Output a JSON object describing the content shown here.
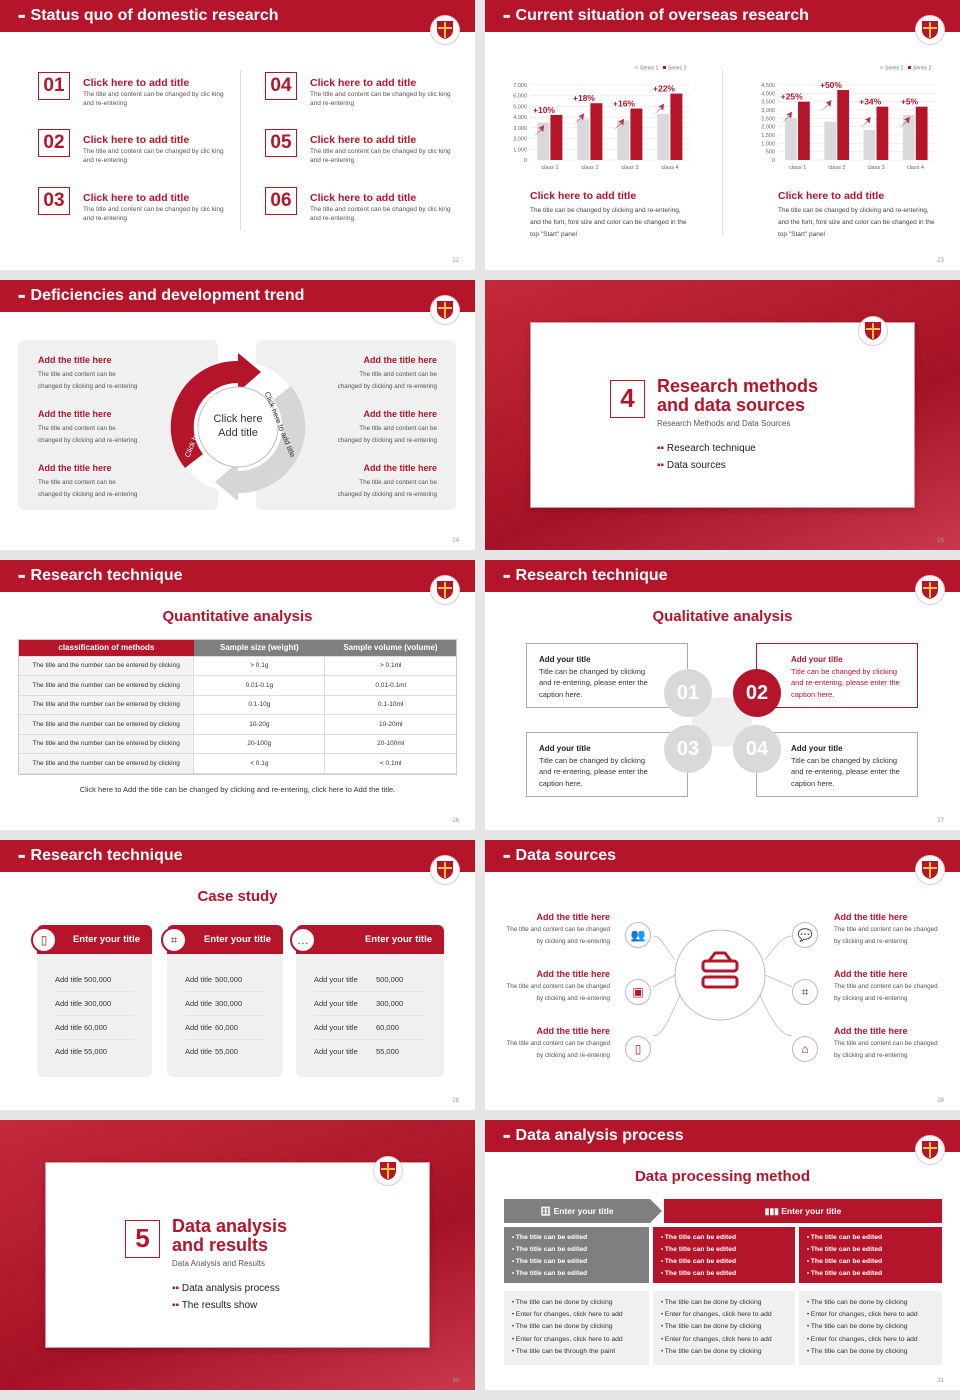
{
  "colors": {
    "primary": "#b5152b",
    "gray": "#7f7f7f",
    "light": "#f0f0f0"
  },
  "s22": {
    "title": "Status quo of domestic research",
    "page": "22",
    "items": [
      {
        "num": "01",
        "title": "Click here to add title",
        "text": "The title and content can be changed by clic king and re-entering"
      },
      {
        "num": "02",
        "title": "Click here to add title",
        "text": "The title and content can be changed by clic king and re-entering"
      },
      {
        "num": "03",
        "title": "Click here to add title",
        "text": "The title and content can be changed by clic king and re-entering"
      },
      {
        "num": "04",
        "title": "Click here to add title",
        "text": "The title and content can be changed by clic king and re-entering"
      },
      {
        "num": "05",
        "title": "Click here to add title",
        "text": "The title and content can be changed by clic king and re-entering"
      },
      {
        "num": "06",
        "title": "Click here to add title",
        "text": "The title and content can be changed by clic king and re-entering"
      }
    ]
  },
  "s23": {
    "title": "Current situation of overseas research",
    "page": "23",
    "captions": [
      {
        "title": "Click here to add title",
        "text": "The title can be changed by clicking and re-entering, and the font, font size and color can be changed in the top \"Start\" panel"
      },
      {
        "title": "Click here to add title",
        "text": "The title can be changed by clicking and re-entering, and the font, font size and color can be changed in the top \"Start\" panel"
      }
    ]
  },
  "chart_data": [
    {
      "type": "bar",
      "categories": [
        "class 1",
        "class 2",
        "class 3",
        "class 4"
      ],
      "series": [
        {
          "name": "Series 1",
          "values": [
            3500,
            3800,
            3700,
            4300
          ],
          "color": "#d9d9d9"
        },
        {
          "name": "Series 2",
          "values": [
            4200,
            5300,
            4800,
            6200
          ],
          "color": "#b5152b"
        }
      ],
      "annotations": [
        "+10%",
        "+18%",
        "+16%",
        "+22%"
      ],
      "yticks": [
        "0",
        "1,000",
        "2,000",
        "3,000",
        "4,000",
        "5,000",
        "6,000",
        "7,000"
      ],
      "ylim": [
        0,
        7000
      ],
      "legend": "top-right",
      "grid": true
    },
    {
      "type": "bar",
      "categories": [
        "class 1",
        "class 2",
        "class 3",
        "class 4"
      ],
      "series": [
        {
          "name": "Series 1",
          "values": [
            2500,
            2300,
            1800,
            2700
          ],
          "color": "#d9d9d9"
        },
        {
          "name": "Series 2",
          "values": [
            3500,
            4200,
            3200,
            3200
          ],
          "color": "#b5152b"
        }
      ],
      "annotations": [
        "+25%",
        "+50%",
        "+34%",
        "+5%"
      ],
      "yticks": [
        "0",
        "500",
        "1,000",
        "1,500",
        "2,000",
        "2,500",
        "3,000",
        "3,500",
        "4,000",
        "4,500"
      ],
      "ylim": [
        0,
        4500
      ],
      "legend": "top-right",
      "grid": true
    }
  ],
  "s24": {
    "title": "Deficiencies and development trend",
    "page": "24",
    "center": [
      "Click here",
      "Add title"
    ],
    "arc_left": "Click here to add title",
    "arc_right": "Click here to add title",
    "left": [
      {
        "title": "Add the title here",
        "text": "The title and content can be changed by clicking and re-entering"
      },
      {
        "title": "Add the title here",
        "text": "The title and content can be changed by clicking and re-entering"
      },
      {
        "title": "Add the title here",
        "text": "The title and content can be changed by clicking and re-entering"
      }
    ],
    "right": [
      {
        "title": "Add the title here",
        "text": "The title and content can be changed by clicking and re-entering"
      },
      {
        "title": "Add the title here",
        "text": "The title and content can be changed by clicking and re-entering"
      },
      {
        "title": "Add the title here",
        "text": "The title and content can be changed by clicking and re-entering"
      }
    ]
  },
  "s25": {
    "num": "4",
    "title1": "Research methods",
    "title2": "and data sources",
    "subtitle": "Research Methods and Data Sources",
    "bullets": [
      "Research technique",
      "Data sources"
    ],
    "page": "25"
  },
  "s26": {
    "title": "Research technique",
    "subtitle": "Quantitative analysis",
    "page": "26",
    "headers": [
      "classification of methods",
      "Sample size (weight)",
      "Sample volume (volume)"
    ],
    "rows": [
      [
        "The title and the number can be entered by clicking",
        "> 0.1g",
        "> 0.1ml"
      ],
      [
        "The title and the number can be entered by clicking",
        "0.01-0.1g",
        "0.01-0.1ml"
      ],
      [
        "The title and the number can be entered by clicking",
        "0.1-10g",
        "0.1-10ml"
      ],
      [
        "The title and the number can be entered by clicking",
        "10-20g",
        "10-20ml"
      ],
      [
        "The title and the number can be entered by clicking",
        "20-100g",
        "20-100ml"
      ],
      [
        "The title and the number can be entered by clicking",
        "< 0.1g",
        "< 0.1ml"
      ]
    ],
    "footer": "Click here to Add the title can be changed by clicking and re-entering, click here to Add the title."
  },
  "s27": {
    "title": "Research technique",
    "subtitle": "Qualitative analysis",
    "page": "27",
    "boxes": [
      {
        "num": "01",
        "title": "Add your title",
        "text": "Title can be changed by clicking and re-entering, please enter the caption here."
      },
      {
        "num": "02",
        "title": "Add your title",
        "text": "Title can be changed by clicking and re-entering, please enter the caption here."
      },
      {
        "num": "03",
        "title": "Add your title",
        "text": "Title can be changed by clicking and re-entering, please enter the caption here."
      },
      {
        "num": "04",
        "title": "Add your title",
        "text": "Title can be changed by clicking and re-entering, please enter the caption here."
      }
    ]
  },
  "s28": {
    "title": "Research technique",
    "subtitle": "Case study",
    "page": "28",
    "cards": [
      {
        "icon": "phone-user-icon",
        "title": "Enter your title",
        "rows": [
          [
            "Add title",
            "500,000"
          ],
          [
            "Add title",
            "300,000"
          ],
          [
            "Add title",
            "60,000"
          ],
          [
            "Add title",
            "55,000"
          ]
        ]
      },
      {
        "icon": "qr-scan-icon",
        "title": "Enter your title",
        "rows": [
          [
            "Add title",
            "500,000"
          ],
          [
            "Add title",
            "300,000"
          ],
          [
            "Add title",
            "60,000"
          ],
          [
            "Add title",
            "55,000"
          ]
        ]
      },
      {
        "icon": "chat-icon",
        "title": "Enter your title",
        "rows": [
          [
            "Add your title",
            "500,000"
          ],
          [
            "Add your title",
            "300,000"
          ],
          [
            "Add your title",
            "60,000"
          ],
          [
            "Add your title",
            "55,000"
          ]
        ]
      }
    ]
  },
  "s29": {
    "title": "Data sources",
    "page": "29",
    "left": [
      {
        "icon": "people-icon",
        "title": "Add the title here",
        "text": "The title and content can be changed by clicking and re-entering"
      },
      {
        "icon": "box-icon",
        "title": "Add the title here",
        "text": "The title and content can be changed by clicking and re-entering"
      },
      {
        "icon": "phone-icon",
        "title": "Add the title here",
        "text": "The title and content can be changed by clicking and re-entering"
      }
    ],
    "right": [
      {
        "icon": "chat-icon",
        "title": "Add the title here",
        "text": "The title and content can be changed by clicking and re-entering"
      },
      {
        "icon": "scan-icon",
        "title": "Add the title here",
        "text": "The title and content can be changed by clicking and re-entering"
      },
      {
        "icon": "building-icon",
        "title": "Add the title here",
        "text": "The title and content can be changed by clicking and re-entering"
      }
    ]
  },
  "s30": {
    "num": "5",
    "title1": "Data analysis",
    "title2": "and results",
    "subtitle": "Data Analysis and Results",
    "bullets": [
      "Data analysis process",
      "The results show"
    ],
    "page": "30"
  },
  "s31": {
    "title": "Data analysis process",
    "subtitle": "Data processing method",
    "page": "31",
    "head_left": "Enter your title",
    "head_right": "Enter your title",
    "edited": [
      "The title can be edited",
      "The title can be edited",
      "The title can be edited",
      "The title can be edited"
    ],
    "lower": [
      [
        "The title can be done by clicking",
        "Enter for changes, click here to add",
        "The title can be done by clicking",
        "Enter for changes, click here to add",
        "The title can be through the paint"
      ],
      [
        "The title can be done by clicking",
        "Enter for changes, click here to add",
        "The title can be done by clicking",
        "Enter for changes, click here to add",
        "The title can be done by clicking"
      ],
      [
        "The title can be done by clicking",
        "Enter for changes, click here to add",
        "The title can be done by clicking",
        "Enter for changes, click here to add",
        "The title can be done by clicking"
      ]
    ]
  }
}
